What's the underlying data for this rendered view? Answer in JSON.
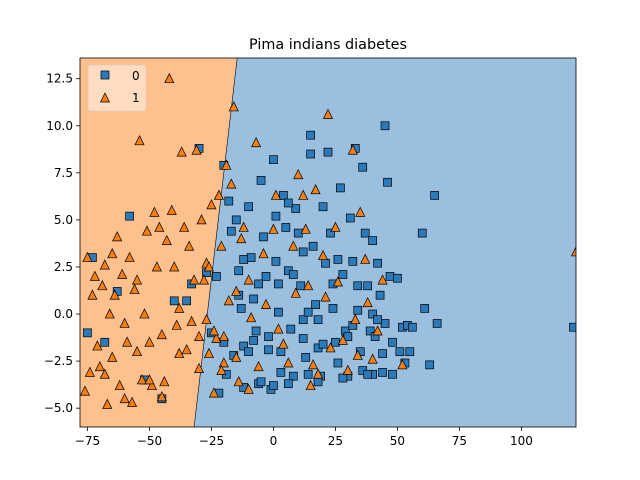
{
  "chart_data": {
    "type": "scatter",
    "title": "Pima indians diabetes",
    "xlabel": "",
    "ylabel": "",
    "xlim": [
      -78,
      122
    ],
    "ylim": [
      -6.0,
      13.6
    ],
    "x_ticks": [
      -75,
      -50,
      -25,
      0,
      25,
      50,
      75,
      100
    ],
    "x_tick_labels": [
      "−75",
      "−50",
      "−25",
      "0",
      "25",
      "50",
      "75",
      "100"
    ],
    "y_ticks": [
      -5.0,
      -2.5,
      0.0,
      2.5,
      5.0,
      7.5,
      10.0,
      12.5
    ],
    "y_tick_labels": [
      "−5.0",
      "−2.5",
      "0.0",
      "2.5",
      "5.0",
      "7.5",
      "10.0",
      "12.5"
    ],
    "grid": false,
    "legend": {
      "placement": "top-left",
      "entries": [
        "0",
        "1"
      ]
    },
    "decision_regions": {
      "boundary_line": [
        [
          -32.0,
          -6.0
        ],
        [
          -14.6,
          13.6
        ]
      ],
      "left_class": "1",
      "right_class": "0",
      "colors": {
        "0": "#9bc0df",
        "1": "#fec08c"
      }
    },
    "series": [
      {
        "name": "0",
        "marker": "square",
        "color": "#2b7bba",
        "points": [
          [
            -75,
            -1.0
          ],
          [
            -73,
            3.0
          ],
          [
            -68,
            -1.5
          ],
          [
            -63,
            1.2
          ],
          [
            -58,
            5.2
          ],
          [
            -52,
            -3.5
          ],
          [
            -45,
            -4.5
          ],
          [
            -40,
            0.7
          ],
          [
            -35,
            0.7
          ],
          [
            -33,
            1.6
          ],
          [
            -30,
            8.8
          ],
          [
            -27,
            2.2
          ],
          [
            -25,
            -1.0
          ],
          [
            -23,
            2.0
          ],
          [
            -22,
            -4.2
          ],
          [
            -20,
            7.9
          ],
          [
            -20,
            -1.5
          ],
          [
            -19,
            -3.2
          ],
          [
            -18,
            6.0
          ],
          [
            -17,
            4.4
          ],
          [
            -15,
            5.0
          ],
          [
            -14,
            2.3
          ],
          [
            -13,
            0.3
          ],
          [
            -12,
            -1.7
          ],
          [
            -12,
            -3.9
          ],
          [
            -10,
            5.7
          ],
          [
            -9,
            3.0
          ],
          [
            -8,
            0.8
          ],
          [
            -7,
            -0.9
          ],
          [
            -6,
            -3.7
          ],
          [
            -5,
            7.1
          ],
          [
            -4,
            4.1
          ],
          [
            -3,
            2.0
          ],
          [
            -2,
            -1.9
          ],
          [
            -1,
            -4.0
          ],
          [
            0,
            8.2
          ],
          [
            1,
            5.2
          ],
          [
            1,
            2.8
          ],
          [
            2,
            0.1
          ],
          [
            3,
            -2.0
          ],
          [
            3,
            -3.1
          ],
          [
            4,
            6.3
          ],
          [
            5,
            4.6
          ],
          [
            6,
            2.3
          ],
          [
            7,
            -0.8
          ],
          [
            8,
            -3.3
          ],
          [
            9,
            5.6
          ],
          [
            10,
            4.3
          ],
          [
            11,
            1.5
          ],
          [
            12,
            -0.3
          ],
          [
            13,
            -2.3
          ],
          [
            14,
            -3.2
          ],
          [
            15,
            9.5
          ],
          [
            15,
            8.5
          ],
          [
            16,
            3.6
          ],
          [
            17,
            0.5
          ],
          [
            18,
            -1.8
          ],
          [
            19,
            -3.3
          ],
          [
            20,
            5.7
          ],
          [
            21,
            2.7
          ],
          [
            22,
            8.6
          ],
          [
            23,
            4.3
          ],
          [
            24,
            0.3
          ],
          [
            25,
            -1.5
          ],
          [
            26,
            -2.6
          ],
          [
            27,
            6.7
          ],
          [
            28,
            2.1
          ],
          [
            29,
            -0.9
          ],
          [
            30,
            -3.3
          ],
          [
            31,
            5.1
          ],
          [
            32,
            2.8
          ],
          [
            33,
            8.8
          ],
          [
            34,
            0.2
          ],
          [
            35,
            -2.0
          ],
          [
            36,
            7.8
          ],
          [
            37,
            4.3
          ],
          [
            38,
            1.5
          ],
          [
            39,
            -0.9
          ],
          [
            40,
            3.9
          ],
          [
            40,
            -3.2
          ],
          [
            41,
            -1.2
          ],
          [
            42,
            2.7
          ],
          [
            43,
            1.0
          ],
          [
            44,
            -2.1
          ],
          [
            45,
            10.0
          ],
          [
            45,
            -0.5
          ],
          [
            46,
            7.0
          ],
          [
            47,
            2.0
          ],
          [
            48,
            -1.5
          ],
          [
            48,
            -3.2
          ],
          [
            50,
            1.9
          ],
          [
            51,
            -2.0
          ],
          [
            52,
            -0.7
          ],
          [
            53,
            -2.6
          ],
          [
            54,
            -0.6
          ],
          [
            55,
            -2.0
          ],
          [
            56,
            -0.7
          ],
          [
            60,
            4.3
          ],
          [
            61,
            0.3
          ],
          [
            63,
            -2.7
          ],
          [
            65,
            6.3
          ],
          [
            66,
            -0.5
          ],
          [
            121,
            -0.7
          ],
          [
            -16,
            -2.2
          ],
          [
            -10,
            -2.0
          ],
          [
            -5,
            -3.6
          ],
          [
            2,
            1.6
          ],
          [
            8,
            2.1
          ],
          [
            12,
            -1.3
          ],
          [
            18,
            -3.6
          ],
          [
            24,
            1.6
          ],
          [
            30,
            -1.2
          ],
          [
            36,
            -3.0
          ],
          [
            40,
            0.0
          ],
          [
            44,
            -3.1
          ],
          [
            -6,
            1.6
          ],
          [
            -2,
            -1.2
          ],
          [
            6,
            -3.7
          ],
          [
            14,
            0.1
          ],
          [
            20,
            -1.6
          ],
          [
            26,
            2.9
          ],
          [
            32,
            -0.6
          ],
          [
            38,
            -3.2
          ],
          [
            -14,
            1.0
          ],
          [
            -8,
            -1.4
          ],
          [
            0,
            -3.8
          ],
          [
            6,
            5.9
          ],
          [
            12,
            3.3
          ],
          [
            18,
            -0.3
          ],
          [
            28,
            -3.4
          ],
          [
            34,
            1.5
          ],
          [
            42,
            -0.3
          ],
          [
            -12,
            2.9
          ]
        ]
      },
      {
        "name": "1",
        "marker": "triangle",
        "color": "#f47f17",
        "points": [
          [
            -76,
            -4.1
          ],
          [
            -75,
            3.0
          ],
          [
            -74,
            -3.1
          ],
          [
            -73,
            1.0
          ],
          [
            -72,
            2.0
          ],
          [
            -71,
            -1.7
          ],
          [
            -70,
            -2.8
          ],
          [
            -69,
            1.5
          ],
          [
            -68,
            2.6
          ],
          [
            -67,
            -4.8
          ],
          [
            -66,
            0.0
          ],
          [
            -65,
            -2.3
          ],
          [
            -64,
            1.0
          ],
          [
            -63,
            4.1
          ],
          [
            -62,
            -3.8
          ],
          [
            -61,
            2.1
          ],
          [
            -60,
            -0.5
          ],
          [
            -59,
            -1.5
          ],
          [
            -58,
            3.0
          ],
          [
            -57,
            -4.7
          ],
          [
            -56,
            1.3
          ],
          [
            -55,
            -2.0
          ],
          [
            -54,
            9.2
          ],
          [
            -53,
            -3.5
          ],
          [
            -52,
            0.0
          ],
          [
            -51,
            4.4
          ],
          [
            -50,
            -1.5
          ],
          [
            -49,
            -3.8
          ],
          [
            -48,
            5.4
          ],
          [
            -47,
            2.5
          ],
          [
            -46,
            4.6
          ],
          [
            -45,
            -1.1
          ],
          [
            -44,
            -3.6
          ],
          [
            -43,
            3.9
          ],
          [
            -42,
            12.5
          ],
          [
            -41,
            5.5
          ],
          [
            -40,
            2.5
          ],
          [
            -39,
            -0.6
          ],
          [
            -38,
            -2.1
          ],
          [
            -37,
            8.6
          ],
          [
            -36,
            4.6
          ],
          [
            -35,
            -1.9
          ],
          [
            -34,
            3.6
          ],
          [
            -33,
            -0.4
          ],
          [
            -32,
            1.8
          ],
          [
            -31,
            8.7
          ],
          [
            -30,
            -2.9
          ],
          [
            -29,
            5.0
          ],
          [
            -28,
            1.8
          ],
          [
            -27,
            2.7
          ],
          [
            -26,
            -2.1
          ],
          [
            -25,
            5.8
          ],
          [
            -24,
            -4.2
          ],
          [
            -23,
            -1.3
          ],
          [
            -22,
            6.3
          ],
          [
            -21,
            3.6
          ],
          [
            -20,
            -2.6
          ],
          [
            -19,
            7.9
          ],
          [
            -17,
            6.9
          ],
          [
            -16,
            11.0
          ],
          [
            -15,
            1.2
          ],
          [
            -14,
            -3.6
          ],
          [
            -13,
            4.0
          ],
          [
            -10,
            1.8
          ],
          [
            -7,
            9.1
          ],
          [
            -6,
            -2.8
          ],
          [
            -3,
            0.5
          ],
          [
            1,
            6.3
          ],
          [
            4,
            -1.6
          ],
          [
            8,
            3.6
          ],
          [
            10,
            7.4
          ],
          [
            12,
            6.3
          ],
          [
            14,
            1.5
          ],
          [
            15,
            -3.8
          ],
          [
            17,
            6.6
          ],
          [
            20,
            3.1
          ],
          [
            22,
            10.6
          ],
          [
            23,
            -1.8
          ],
          [
            25,
            4.6
          ],
          [
            26,
            1.7
          ],
          [
            30,
            -3.0
          ],
          [
            32,
            8.7
          ],
          [
            33,
            -0.3
          ],
          [
            35,
            5.4
          ],
          [
            37,
            2.9
          ],
          [
            40,
            -2.4
          ],
          [
            42,
            -0.9
          ],
          [
            44,
            1.8
          ],
          [
            52,
            -2.7
          ],
          [
            122,
            3.3
          ],
          [
            -27,
            -0.3
          ],
          [
            -24,
            -0.9
          ],
          [
            -21,
            -3.0
          ],
          [
            -18,
            0.7
          ],
          [
            -15,
            -2.3
          ],
          [
            -12,
            4.6
          ],
          [
            -9,
            -0.2
          ],
          [
            -4,
            3.2
          ],
          [
            2,
            -0.8
          ],
          [
            6,
            -2.6
          ],
          [
            9,
            1.1
          ],
          [
            13,
            4.5
          ],
          [
            18,
            -3.2
          ],
          [
            21,
            0.9
          ],
          [
            28,
            -1.4
          ],
          [
            34,
            -2.2
          ],
          [
            38,
            0.6
          ],
          [
            -45,
            -4.4
          ],
          [
            -50,
            -3.5
          ],
          [
            -60,
            -4.5
          ],
          [
            -68,
            -3.2
          ],
          [
            -55,
            1.8
          ],
          [
            -65,
            3.2
          ],
          [
            -38,
            0.3
          ],
          [
            -30,
            -1.2
          ],
          [
            -26,
            2.5
          ],
          [
            -20,
            -1.2
          ],
          [
            -10,
            -4.0
          ],
          [
            0,
            4.5
          ],
          [
            16,
            -2.7
          ]
        ]
      }
    ]
  }
}
